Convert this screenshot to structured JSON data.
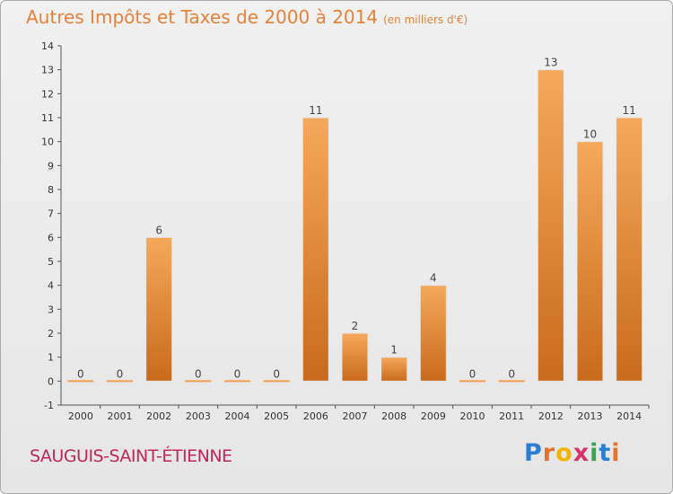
{
  "title": "Autres Impôts et Taxes de 2000 à 2014",
  "unit_label": "(en milliers d'€)",
  "commune": "SAUGUIS-SAINT-ÉTIENNE",
  "brand": {
    "letters": [
      "P",
      "r",
      "o",
      "x",
      "i",
      "t",
      "i"
    ],
    "colors": [
      "#2a7fd4",
      "#e8712a",
      "#f4b400",
      "#d6336c",
      "#3aa64b",
      "#2a7fd4",
      "#e8712a"
    ]
  },
  "colors": {
    "title": "#e8823a",
    "commune": "#c0265a",
    "bar_light": "#f5a95a",
    "bar_dark": "#c96a1c",
    "zero_bar": "#f0a050"
  },
  "chart_data": {
    "type": "bar",
    "categories": [
      "2000",
      "2001",
      "2002",
      "2003",
      "2004",
      "2005",
      "2006",
      "2007",
      "2008",
      "2009",
      "2010",
      "2011",
      "2012",
      "2013",
      "2014"
    ],
    "values": [
      0,
      0,
      6,
      0,
      0,
      0,
      11,
      2,
      1,
      4,
      0,
      0,
      13,
      10,
      11
    ],
    "data_labels": [
      "0",
      "0",
      "6",
      "0",
      "0",
      "0",
      "11",
      "2",
      "1",
      "4",
      "0",
      "0",
      "13",
      "10",
      "11"
    ],
    "y_ticks": [
      "-1",
      "0",
      "1",
      "2",
      "3",
      "4",
      "5",
      "6",
      "7",
      "8",
      "9",
      "10",
      "11",
      "12",
      "13",
      "14"
    ],
    "ylim": [
      -1,
      14
    ],
    "grid": false,
    "xlabel": "",
    "ylabel": ""
  }
}
